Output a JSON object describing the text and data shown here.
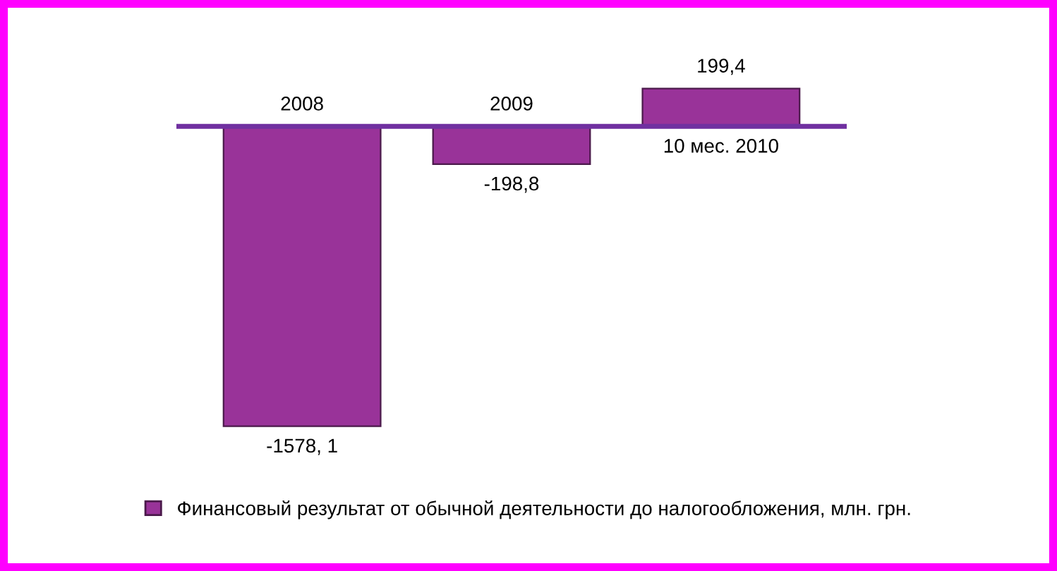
{
  "chart_data": {
    "type": "bar",
    "categories": [
      "2008",
      "2009",
      "10 мес. 2010"
    ],
    "series": [
      {
        "name": "Финансовый результат от обычной деятельности до налогообложения, млн. грн.",
        "color": "#993399",
        "values": [
          -1578.1,
          -198.8,
          199.4
        ],
        "value_labels": [
          "-1578, 1",
          "-198,8",
          "199,4"
        ]
      }
    ],
    "legend": "bottom"
  }
}
